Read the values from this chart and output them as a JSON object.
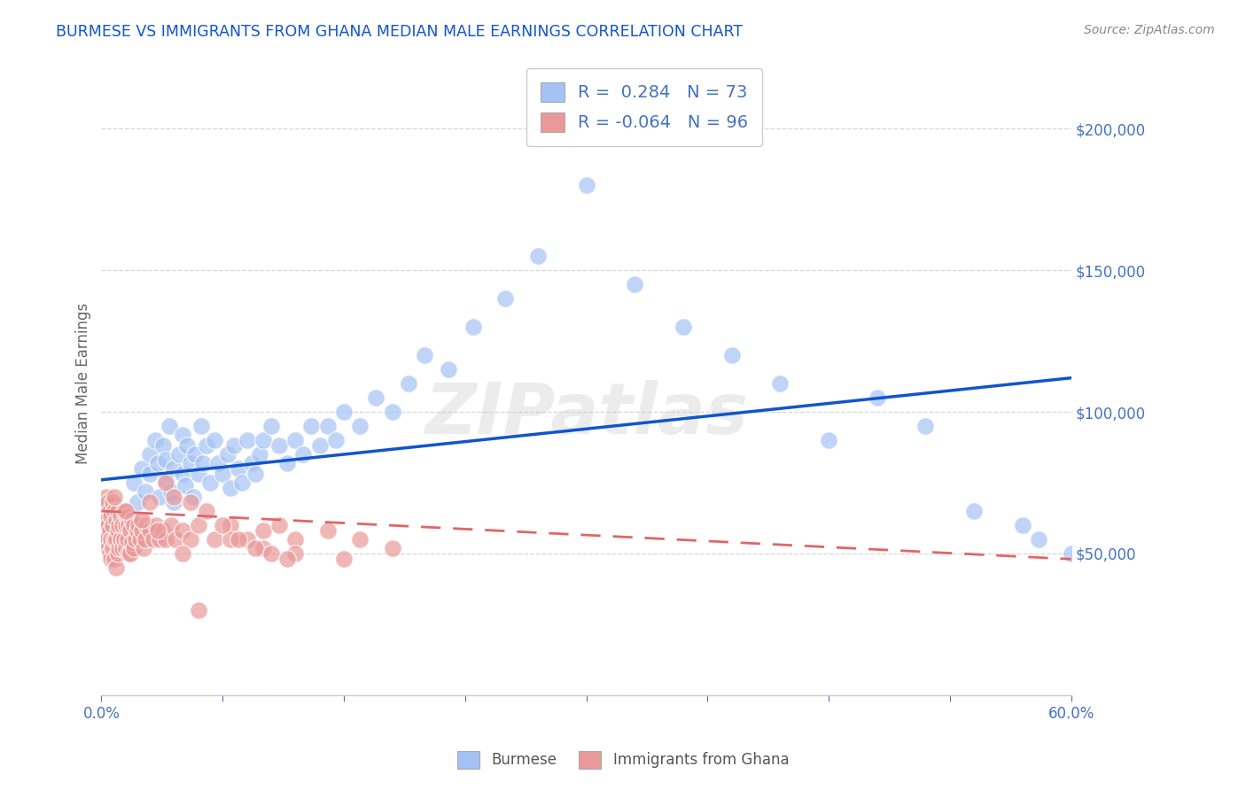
{
  "title": "BURMESE VS IMMIGRANTS FROM GHANA MEDIAN MALE EARNINGS CORRELATION CHART",
  "source": "Source: ZipAtlas.com",
  "ylabel": "Median Male Earnings",
  "xlim": [
    0.0,
    0.6
  ],
  "ylim": [
    0,
    220000
  ],
  "yticks": [
    0,
    50000,
    100000,
    150000,
    200000
  ],
  "xticks": [
    0.0,
    0.075,
    0.15,
    0.225,
    0.3,
    0.375,
    0.45,
    0.525,
    0.6
  ],
  "xtick_labels_show": [
    "0.0%",
    "",
    "",
    "",
    "",
    "",
    "",
    "",
    "60.0%"
  ],
  "blue_R": 0.284,
  "blue_N": 73,
  "pink_R": -0.064,
  "pink_N": 96,
  "blue_color": "#a4c2f4",
  "pink_color": "#ea9999",
  "blue_line_color": "#1155cc",
  "pink_line_color": "#e06666",
  "bg_color": "#ffffff",
  "grid_color": "#cccccc",
  "title_color": "#1155cc",
  "axis_label_color": "#666666",
  "tick_color": "#4472c4",
  "watermark": "ZIPatlas",
  "blue_scatter_x": [
    0.02,
    0.022,
    0.025,
    0.027,
    0.03,
    0.03,
    0.033,
    0.035,
    0.036,
    0.038,
    0.04,
    0.04,
    0.042,
    0.043,
    0.045,
    0.045,
    0.048,
    0.05,
    0.05,
    0.052,
    0.053,
    0.055,
    0.057,
    0.058,
    0.06,
    0.062,
    0.063,
    0.065,
    0.067,
    0.07,
    0.072,
    0.075,
    0.078,
    0.08,
    0.082,
    0.085,
    0.087,
    0.09,
    0.093,
    0.095,
    0.098,
    0.1,
    0.105,
    0.11,
    0.115,
    0.12,
    0.125,
    0.13,
    0.135,
    0.14,
    0.145,
    0.15,
    0.16,
    0.17,
    0.18,
    0.19,
    0.2,
    0.215,
    0.23,
    0.25,
    0.27,
    0.3,
    0.33,
    0.36,
    0.39,
    0.42,
    0.45,
    0.48,
    0.51,
    0.54,
    0.57,
    0.58,
    0.6
  ],
  "blue_scatter_y": [
    75000,
    68000,
    80000,
    72000,
    85000,
    78000,
    90000,
    82000,
    70000,
    88000,
    76000,
    83000,
    95000,
    72000,
    80000,
    68000,
    85000,
    78000,
    92000,
    74000,
    88000,
    82000,
    70000,
    85000,
    78000,
    95000,
    82000,
    88000,
    75000,
    90000,
    82000,
    78000,
    85000,
    73000,
    88000,
    80000,
    75000,
    90000,
    82000,
    78000,
    85000,
    90000,
    95000,
    88000,
    82000,
    90000,
    85000,
    95000,
    88000,
    95000,
    90000,
    100000,
    95000,
    105000,
    100000,
    110000,
    120000,
    115000,
    130000,
    140000,
    155000,
    180000,
    145000,
    130000,
    120000,
    110000,
    90000,
    105000,
    95000,
    65000,
    60000,
    55000,
    50000
  ],
  "pink_scatter_x": [
    0.001,
    0.001,
    0.002,
    0.002,
    0.003,
    0.003,
    0.003,
    0.004,
    0.004,
    0.004,
    0.005,
    0.005,
    0.005,
    0.006,
    0.006,
    0.006,
    0.007,
    0.007,
    0.007,
    0.008,
    0.008,
    0.008,
    0.009,
    0.009,
    0.009,
    0.01,
    0.01,
    0.01,
    0.011,
    0.011,
    0.012,
    0.012,
    0.013,
    0.013,
    0.014,
    0.014,
    0.015,
    0.015,
    0.016,
    0.016,
    0.017,
    0.017,
    0.018,
    0.018,
    0.019,
    0.019,
    0.02,
    0.02,
    0.021,
    0.022,
    0.023,
    0.024,
    0.025,
    0.026,
    0.027,
    0.028,
    0.03,
    0.032,
    0.034,
    0.036,
    0.038,
    0.04,
    0.043,
    0.046,
    0.05,
    0.055,
    0.06,
    0.07,
    0.08,
    0.09,
    0.1,
    0.11,
    0.12,
    0.14,
    0.16,
    0.18,
    0.05,
    0.08,
    0.1,
    0.12,
    0.15,
    0.03,
    0.04,
    0.045,
    0.055,
    0.065,
    0.075,
    0.085,
    0.095,
    0.105,
    0.115,
    0.008,
    0.015,
    0.025,
    0.035,
    0.06
  ],
  "pink_scatter_y": [
    60000,
    55000,
    65000,
    58000,
    70000,
    62000,
    55000,
    68000,
    60000,
    52000,
    65000,
    58000,
    50000,
    63000,
    55000,
    48000,
    68000,
    60000,
    52000,
    65000,
    55000,
    48000,
    62000,
    55000,
    45000,
    65000,
    58000,
    50000,
    60000,
    52000,
    63000,
    55000,
    60000,
    52000,
    65000,
    55000,
    60000,
    52000,
    63000,
    55000,
    60000,
    50000,
    58000,
    50000,
    62000,
    54000,
    60000,
    52000,
    55000,
    58000,
    60000,
    55000,
    58000,
    52000,
    55000,
    60000,
    58000,
    55000,
    60000,
    55000,
    58000,
    55000,
    60000,
    55000,
    58000,
    55000,
    60000,
    55000,
    60000,
    55000,
    58000,
    60000,
    55000,
    58000,
    55000,
    52000,
    50000,
    55000,
    52000,
    50000,
    48000,
    68000,
    75000,
    70000,
    68000,
    65000,
    60000,
    55000,
    52000,
    50000,
    48000,
    70000,
    65000,
    62000,
    58000,
    30000
  ]
}
